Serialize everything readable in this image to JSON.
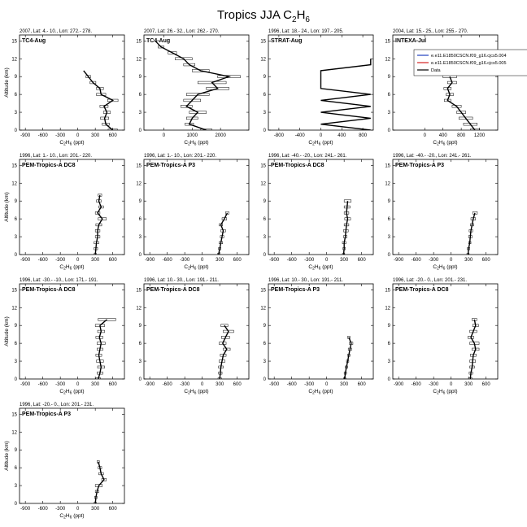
{
  "page": {
    "title_main": "Tropics JJA C",
    "title_sub1": "2",
    "title_mid": "H",
    "title_sub2": "6"
  },
  "legend": {
    "entries": [
      {
        "label": "e.e11.E1850CSCN.f09_g16.cjcs5.004",
        "color": "#1f3fbf"
      },
      {
        "label": "e.e11.E1850CSCN.f09_g16.cjcs5.005",
        "color": "#d42020"
      },
      {
        "label": "Data",
        "color": "#000000"
      }
    ]
  },
  "chart_data": [
    {
      "type": "line",
      "header": "2007, Lat: 4.- 10., Lon: 272.- 278.",
      "campaign": "TC4-Aug",
      "xlabel": "C2H6 (ppt)",
      "ylabel": "Altitude (km)",
      "xlim": [
        -1000,
        800
      ],
      "ylim": [
        0,
        16
      ],
      "xticks": [
        -900,
        -600,
        -300,
        0,
        300,
        600
      ],
      "yticks": [
        0,
        3,
        6,
        9,
        12,
        15
      ],
      "points": [
        {
          "y": 10,
          "x": 100,
          "err": 0
        },
        {
          "y": 9,
          "x": 180,
          "err": 40
        },
        {
          "y": 8,
          "x": 260,
          "err": 50
        },
        {
          "y": 7,
          "x": 380,
          "err": 60
        },
        {
          "y": 6,
          "x": 400,
          "err": 80
        },
        {
          "y": 5,
          "x": 600,
          "err": 90
        },
        {
          "y": 4,
          "x": 450,
          "err": 70
        },
        {
          "y": 3,
          "x": 500,
          "err": 60
        },
        {
          "y": 2,
          "x": 460,
          "err": 70
        },
        {
          "y": 1,
          "x": 480,
          "err": 60
        },
        {
          "y": 0,
          "x": 600,
          "err": 80
        }
      ]
    },
    {
      "type": "line",
      "header": "2007, Lat: 26.- 32., Lon: 262.- 270.",
      "campaign": "TC4-Aug",
      "xlabel": "C2H6 (ppt)",
      "ylabel": "",
      "xlim": [
        -700,
        3000
      ],
      "ylim": [
        0,
        16
      ],
      "xticks": [
        0,
        1000,
        2000
      ],
      "yticks": [
        0,
        3,
        6,
        9,
        12,
        15
      ],
      "points": [
        {
          "y": 15,
          "x": -300,
          "err": 0
        },
        {
          "y": 14,
          "x": -100,
          "err": 100
        },
        {
          "y": 13,
          "x": 300,
          "err": 150
        },
        {
          "y": 12,
          "x": 700,
          "err": 300
        },
        {
          "y": 11,
          "x": 900,
          "err": 200
        },
        {
          "y": 10,
          "x": 1300,
          "err": 300
        },
        {
          "y": 9,
          "x": 2300,
          "err": 400
        },
        {
          "y": 8,
          "x": 1700,
          "err": 500
        },
        {
          "y": 7,
          "x": 1900,
          "err": 400
        },
        {
          "y": 6,
          "x": 1200,
          "err": 400
        },
        {
          "y": 5,
          "x": 1000,
          "err": 300
        },
        {
          "y": 4,
          "x": 800,
          "err": 200
        },
        {
          "y": 3,
          "x": 1200,
          "err": 300
        },
        {
          "y": 2,
          "x": 1000,
          "err": 200
        },
        {
          "y": 1,
          "x": 900,
          "err": 150
        },
        {
          "y": 0,
          "x": 1500,
          "err": 200
        }
      ]
    },
    {
      "type": "line",
      "header": "1996, Lat: 18.- 24., Lon: 197.- 205.",
      "campaign": "STRAT-Aug",
      "xlabel": "C2H6 (ppt)",
      "ylabel": "",
      "xlim": [
        -1000,
        1000
      ],
      "ylim": [
        0,
        16
      ],
      "xticks": [
        -800,
        -400,
        0,
        400,
        800
      ],
      "yticks": [
        0,
        3,
        6,
        9,
        12,
        15
      ],
      "points": [
        {
          "y": 12,
          "x": 950,
          "err": 0
        },
        {
          "y": 11,
          "x": 950,
          "err": 0
        },
        {
          "y": 10,
          "x": 0,
          "err": 0
        },
        {
          "y": 7,
          "x": 0,
          "err": 0
        },
        {
          "y": 6,
          "x": 950,
          "err": 0
        },
        {
          "y": 5,
          "x": 0,
          "err": 0
        },
        {
          "y": 4,
          "x": 950,
          "err": 0
        },
        {
          "y": 3,
          "x": 0,
          "err": 0
        },
        {
          "y": 2,
          "x": 950,
          "err": 0
        },
        {
          "y": 1,
          "x": 0,
          "err": 0
        },
        {
          "y": 0,
          "x": 950,
          "err": 0
        }
      ]
    },
    {
      "type": "line",
      "header": "2004, Lat: 15.- 25., Lon: 255.- 270.",
      "campaign": "INTEXA-Jul",
      "xlabel": "C2H6 (ppt)",
      "ylabel": "",
      "xlim": [
        -700,
        1600
      ],
      "ylim": [
        0,
        16
      ],
      "xticks": [
        0,
        400,
        800,
        1200
      ],
      "yticks": [
        0,
        3,
        6,
        9,
        12,
        15
      ],
      "points": [
        {
          "y": 9,
          "x": 550,
          "err": 150
        },
        {
          "y": 8,
          "x": 600,
          "err": 100
        },
        {
          "y": 7,
          "x": 500,
          "err": 80
        },
        {
          "y": 6,
          "x": 550,
          "err": 80
        },
        {
          "y": 5,
          "x": 500,
          "err": 70
        },
        {
          "y": 4,
          "x": 700,
          "err": 100
        },
        {
          "y": 3,
          "x": 800,
          "err": 100
        },
        {
          "y": 2,
          "x": 900,
          "err": 150
        },
        {
          "y": 1,
          "x": 1000,
          "err": 150
        },
        {
          "y": 0,
          "x": 1100,
          "err": 100
        }
      ]
    },
    {
      "type": "line",
      "header": "1996, Lat: 1.- 10., Lon: 201.- 220.",
      "campaign": "PEM-Tropics-A DC8",
      "xlabel": "C2H6 (ppt)",
      "ylabel": "Altitude (km)",
      "xlim": [
        -1000,
        800
      ],
      "ylim": [
        0,
        16
      ],
      "xticks": [
        -900,
        -600,
        -300,
        0,
        300,
        600
      ],
      "yticks": [
        0,
        3,
        6,
        9,
        12,
        15
      ],
      "points": [
        {
          "y": 10,
          "x": 380,
          "err": 30
        },
        {
          "y": 9,
          "x": 360,
          "err": 40
        },
        {
          "y": 8,
          "x": 400,
          "err": 40
        },
        {
          "y": 7,
          "x": 340,
          "err": 40
        },
        {
          "y": 6,
          "x": 420,
          "err": 70
        },
        {
          "y": 5,
          "x": 360,
          "err": 50
        },
        {
          "y": 4,
          "x": 340,
          "err": 40
        },
        {
          "y": 3,
          "x": 340,
          "err": 40
        },
        {
          "y": 2,
          "x": 320,
          "err": 40
        },
        {
          "y": 1,
          "x": 310,
          "err": 30
        },
        {
          "y": 0,
          "x": 300,
          "err": 20
        }
      ]
    },
    {
      "type": "line",
      "header": "1996, Lat: 1.- 10., Lon: 201.- 220.",
      "campaign": "PEM-Tropics-A P3",
      "xlabel": "C2H6 (ppt)",
      "ylabel": "",
      "xlim": [
        -1000,
        800
      ],
      "ylim": [
        0,
        16
      ],
      "xticks": [
        -900,
        -600,
        -300,
        0,
        300,
        600
      ],
      "yticks": [
        0,
        3,
        6,
        9,
        12,
        15
      ],
      "points": [
        {
          "y": 7,
          "x": 430,
          "err": 30
        },
        {
          "y": 6,
          "x": 380,
          "err": 40
        },
        {
          "y": 5,
          "x": 320,
          "err": 30
        },
        {
          "y": 4,
          "x": 360,
          "err": 40
        },
        {
          "y": 3,
          "x": 340,
          "err": 30
        },
        {
          "y": 2,
          "x": 320,
          "err": 30
        },
        {
          "y": 1,
          "x": 300,
          "err": 20
        },
        {
          "y": 0,
          "x": 280,
          "err": 20
        }
      ]
    },
    {
      "type": "line",
      "header": "1996, Lat: -40.- -20., Lon: 241.- 261.",
      "campaign": "PEM-Tropics-A DC8",
      "xlabel": "C2H6 (ppt)",
      "ylabel": "",
      "xlim": [
        -1000,
        800
      ],
      "ylim": [
        0,
        16
      ],
      "xticks": [
        -900,
        -600,
        -300,
        0,
        300,
        600
      ],
      "yticks": [
        0,
        3,
        6,
        9,
        12,
        15
      ],
      "points": [
        {
          "y": 9,
          "x": 360,
          "err": 60
        },
        {
          "y": 8,
          "x": 350,
          "err": 50
        },
        {
          "y": 7,
          "x": 340,
          "err": 40
        },
        {
          "y": 6,
          "x": 360,
          "err": 50
        },
        {
          "y": 5,
          "x": 340,
          "err": 40
        },
        {
          "y": 4,
          "x": 330,
          "err": 40
        },
        {
          "y": 3,
          "x": 320,
          "err": 30
        },
        {
          "y": 2,
          "x": 300,
          "err": 30
        },
        {
          "y": 1,
          "x": 300,
          "err": 20
        },
        {
          "y": 0,
          "x": 290,
          "err": 20
        }
      ]
    },
    {
      "type": "line",
      "header": "1996, Lat: -40.- -20., Lon: 241.- 261.",
      "campaign": "PEM-Tropics-A P3",
      "xlabel": "C2H6 (ppt)",
      "ylabel": "",
      "xlim": [
        -1000,
        800
      ],
      "ylim": [
        0,
        16
      ],
      "xticks": [
        -900,
        -600,
        -300,
        0,
        300,
        600
      ],
      "yticks": [
        0,
        3,
        6,
        9,
        12,
        15
      ],
      "points": [
        {
          "y": 7,
          "x": 410,
          "err": 40
        },
        {
          "y": 6,
          "x": 380,
          "err": 40
        },
        {
          "y": 5,
          "x": 360,
          "err": 30
        },
        {
          "y": 4,
          "x": 340,
          "err": 30
        },
        {
          "y": 3,
          "x": 330,
          "err": 30
        },
        {
          "y": 2,
          "x": 320,
          "err": 20
        },
        {
          "y": 1,
          "x": 300,
          "err": 20
        },
        {
          "y": 0,
          "x": 290,
          "err": 20
        }
      ]
    },
    {
      "type": "line",
      "header": "1996, Lat: -30.- -10., Lon: 171.- 191.",
      "campaign": "PEM-Tropics-A DC8",
      "xlabel": "C2H6 (ppt)",
      "ylabel": "Altitude (km)",
      "xlim": [
        -1000,
        800
      ],
      "ylim": [
        0,
        16
      ],
      "xticks": [
        -900,
        -600,
        -300,
        0,
        300,
        600
      ],
      "yticks": [
        0,
        3,
        6,
        9,
        12,
        15
      ],
      "points": [
        {
          "y": 10,
          "x": 500,
          "err": 150
        },
        {
          "y": 9,
          "x": 380,
          "err": 80
        },
        {
          "y": 8,
          "x": 400,
          "err": 60
        },
        {
          "y": 7,
          "x": 370,
          "err": 60
        },
        {
          "y": 6,
          "x": 400,
          "err": 70
        },
        {
          "y": 5,
          "x": 380,
          "err": 50
        },
        {
          "y": 4,
          "x": 360,
          "err": 50
        },
        {
          "y": 3,
          "x": 380,
          "err": 60
        },
        {
          "y": 2,
          "x": 400,
          "err": 60
        },
        {
          "y": 1,
          "x": 380,
          "err": 50
        },
        {
          "y": 0,
          "x": 350,
          "err": 40
        }
      ]
    },
    {
      "type": "line",
      "header": "1996, Lat: 10.- 30., Lon: 191.- 211.",
      "campaign": "PEM-Tropics-A DC8",
      "xlabel": "C2H6 (ppt)",
      "ylabel": "",
      "xlim": [
        -1000,
        800
      ],
      "ylim": [
        0,
        16
      ],
      "xticks": [
        -900,
        -600,
        -300,
        0,
        300,
        600
      ],
      "yticks": [
        0,
        3,
        6,
        9,
        12,
        15
      ],
      "points": [
        {
          "y": 9,
          "x": 380,
          "err": 60
        },
        {
          "y": 8,
          "x": 450,
          "err": 90
        },
        {
          "y": 7,
          "x": 400,
          "err": 70
        },
        {
          "y": 6,
          "x": 350,
          "err": 60
        },
        {
          "y": 5,
          "x": 420,
          "err": 60
        },
        {
          "y": 4,
          "x": 360,
          "err": 50
        },
        {
          "y": 3,
          "x": 340,
          "err": 50
        },
        {
          "y": 2,
          "x": 320,
          "err": 40
        },
        {
          "y": 1,
          "x": 310,
          "err": 30
        },
        {
          "y": 0,
          "x": 300,
          "err": 30
        }
      ]
    },
    {
      "type": "line",
      "header": "1996, Lat: 10.- 30., Lon: 191.- 211.",
      "campaign": "PEM-Tropics-A P3",
      "xlabel": "C2H6 (ppt)",
      "ylabel": "",
      "xlim": [
        -1000,
        800
      ],
      "ylim": [
        0,
        16
      ],
      "xticks": [
        -900,
        -600,
        -300,
        0,
        300,
        600
      ],
      "yticks": [
        0,
        3,
        6,
        9,
        12,
        15
      ],
      "points": [
        {
          "y": 7,
          "x": 380,
          "err": 20
        },
        {
          "y": 6,
          "x": 420,
          "err": 30
        },
        {
          "y": 5,
          "x": 400,
          "err": 30
        },
        {
          "y": 4,
          "x": 380,
          "err": 20
        },
        {
          "y": 3,
          "x": 360,
          "err": 20
        },
        {
          "y": 2,
          "x": 340,
          "err": 20
        },
        {
          "y": 1,
          "x": 320,
          "err": 20
        },
        {
          "y": 0,
          "x": 310,
          "err": 20
        }
      ]
    },
    {
      "type": "line",
      "header": "1996, Lat: -20.- 0., Lon: 201.- 231.",
      "campaign": "PEM-Tropics-A DC8",
      "xlabel": "C2H6 (ppt)",
      "ylabel": "",
      "xlim": [
        -1000,
        800
      ],
      "ylim": [
        0,
        16
      ],
      "xticks": [
        -900,
        -600,
        -300,
        0,
        300,
        600
      ],
      "yticks": [
        0,
        3,
        6,
        9,
        12,
        15
      ],
      "points": [
        {
          "y": 10,
          "x": 400,
          "err": 40
        },
        {
          "y": 9,
          "x": 420,
          "err": 50
        },
        {
          "y": 8,
          "x": 380,
          "err": 60
        },
        {
          "y": 7,
          "x": 340,
          "err": 50
        },
        {
          "y": 6,
          "x": 400,
          "err": 80
        },
        {
          "y": 5,
          "x": 420,
          "err": 60
        },
        {
          "y": 4,
          "x": 380,
          "err": 50
        },
        {
          "y": 3,
          "x": 370,
          "err": 50
        },
        {
          "y": 2,
          "x": 360,
          "err": 40
        },
        {
          "y": 1,
          "x": 340,
          "err": 30
        },
        {
          "y": 0,
          "x": 330,
          "err": 30
        }
      ]
    },
    {
      "type": "line",
      "header": "1996, Lat: -20.- 0., Lon: 201.- 231.",
      "campaign": "PEM-Tropics-A P3",
      "xlabel": "C2H6 (ppt)",
      "ylabel": "Altitude (km)",
      "xlim": [
        -1000,
        800
      ],
      "ylim": [
        0,
        16
      ],
      "xticks": [
        -900,
        -600,
        -300,
        0,
        300,
        600
      ],
      "yticks": [
        0,
        3,
        6,
        9,
        12,
        15
      ],
      "points": [
        {
          "y": 7,
          "x": 350,
          "err": 20
        },
        {
          "y": 6,
          "x": 380,
          "err": 30
        },
        {
          "y": 5,
          "x": 400,
          "err": 40
        },
        {
          "y": 4,
          "x": 450,
          "err": 40
        },
        {
          "y": 3,
          "x": 360,
          "err": 60
        },
        {
          "y": 2,
          "x": 330,
          "err": 30
        },
        {
          "y": 1,
          "x": 310,
          "err": 20
        },
        {
          "y": 0,
          "x": 300,
          "err": 20
        }
      ]
    }
  ]
}
